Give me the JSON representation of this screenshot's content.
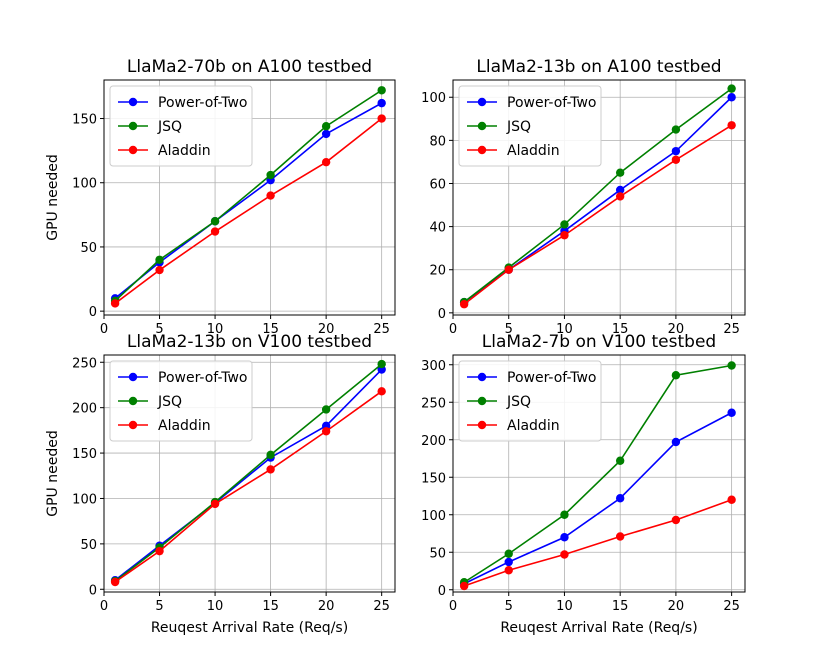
{
  "chart_data": [
    {
      "type": "line",
      "title": "LlaMa2-70b on A100 testbed",
      "xlabel": "",
      "ylabel": "GPU needed",
      "xlim": [
        0,
        26.2
      ],
      "ylim": [
        -3,
        180
      ],
      "x": [
        1,
        5,
        10,
        15,
        20,
        25
      ],
      "xticks": [
        0,
        5,
        10,
        15,
        20,
        25
      ],
      "yticks": [
        0,
        50,
        100,
        150
      ],
      "legend": "upper-left",
      "grid": true,
      "series": [
        {
          "name": "Power-of-Two",
          "color": "#0000ff",
          "values": [
            10,
            38,
            70,
            102,
            138,
            162
          ]
        },
        {
          "name": "JSQ",
          "color": "#008000",
          "values": [
            8,
            40,
            70,
            106,
            144,
            172
          ]
        },
        {
          "name": "Aladdin",
          "color": "#ff0000",
          "values": [
            6,
            32,
            62,
            90,
            116,
            150
          ]
        }
      ]
    },
    {
      "type": "line",
      "title": "LlaMa2-13b on A100 testbed",
      "xlabel": "",
      "ylabel": "",
      "xlim": [
        0,
        26.2
      ],
      "ylim": [
        -1,
        108
      ],
      "x": [
        1,
        5,
        10,
        15,
        20,
        25
      ],
      "xticks": [
        0,
        5,
        10,
        15,
        20,
        25
      ],
      "yticks": [
        0,
        20,
        40,
        60,
        80,
        100
      ],
      "legend": "upper-left",
      "grid": true,
      "series": [
        {
          "name": "Power-of-Two",
          "color": "#0000ff",
          "values": [
            5,
            20,
            38,
            57,
            75,
            100
          ]
        },
        {
          "name": "JSQ",
          "color": "#008000",
          "values": [
            5,
            21,
            41,
            65,
            85,
            104
          ]
        },
        {
          "name": "Aladdin",
          "color": "#ff0000",
          "values": [
            4,
            20,
            36,
            54,
            71,
            87
          ]
        }
      ]
    },
    {
      "type": "line",
      "title": "LlaMa2-13b on V100 testbed",
      "xlabel": "Reuqest Arrival Rate (Req/s)",
      "ylabel": "GPU needed",
      "xlim": [
        0,
        26.2
      ],
      "ylim": [
        -3,
        258
      ],
      "x": [
        1,
        5,
        10,
        15,
        20,
        25
      ],
      "xticks": [
        0,
        5,
        10,
        15,
        20,
        25
      ],
      "yticks": [
        0,
        50,
        100,
        150,
        200,
        250
      ],
      "legend": "upper-left",
      "grid": true,
      "series": [
        {
          "name": "Power-of-Two",
          "color": "#0000ff",
          "values": [
            10,
            48,
            95,
            145,
            180,
            242
          ]
        },
        {
          "name": "JSQ",
          "color": "#008000",
          "values": [
            9,
            46,
            96,
            148,
            198,
            248
          ]
        },
        {
          "name": "Aladdin",
          "color": "#ff0000",
          "values": [
            8,
            42,
            94,
            132,
            174,
            218
          ]
        }
      ]
    },
    {
      "type": "line",
      "title": "LlaMa2-7b on V100 testbed",
      "xlabel": "Reuqest Arrival Rate (Req/s)",
      "ylabel": "",
      "xlim": [
        0,
        26.2
      ],
      "ylim": [
        -3,
        313
      ],
      "x": [
        1,
        5,
        10,
        15,
        20,
        25
      ],
      "xticks": [
        0,
        5,
        10,
        15,
        20,
        25
      ],
      "yticks": [
        0,
        50,
        100,
        150,
        200,
        250,
        300
      ],
      "legend": "upper-left",
      "grid": true,
      "series": [
        {
          "name": "Power-of-Two",
          "color": "#0000ff",
          "values": [
            8,
            37,
            70,
            122,
            197,
            236
          ]
        },
        {
          "name": "JSQ",
          "color": "#008000",
          "values": [
            10,
            48,
            100,
            172,
            286,
            299
          ]
        },
        {
          "name": "Aladdin",
          "color": "#ff0000",
          "values": [
            5,
            26,
            47,
            71,
            93,
            120
          ]
        }
      ]
    }
  ]
}
